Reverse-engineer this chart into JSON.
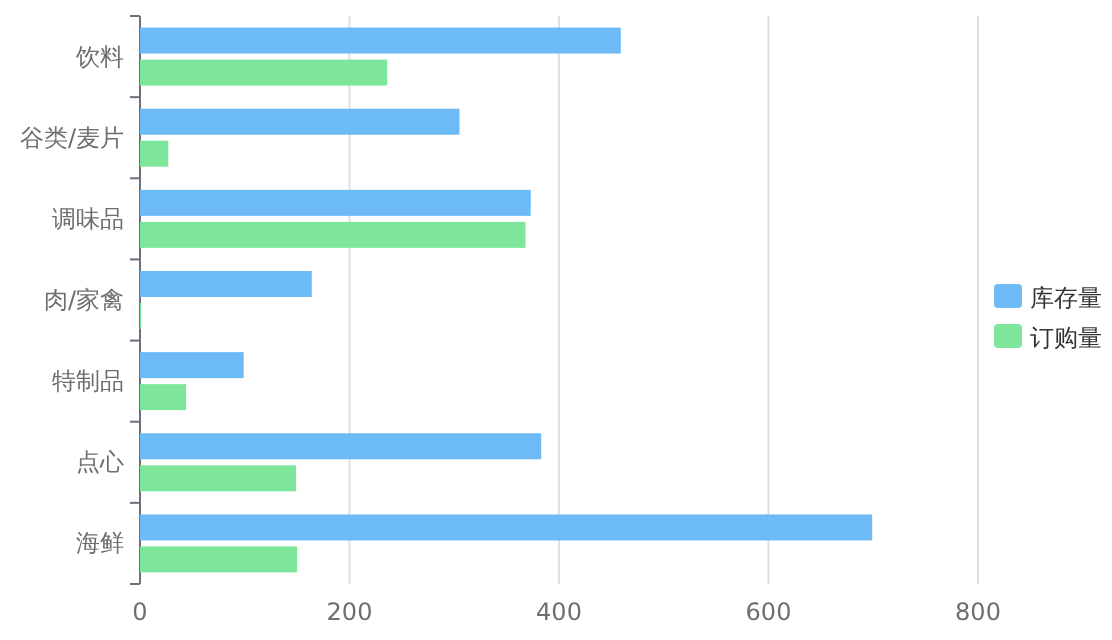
{
  "chart_data": {
    "type": "bar",
    "orientation": "horizontal",
    "categories": [
      "饮料",
      "谷类/麦片",
      "调味品",
      "肉/家禽",
      "特制品",
      "点心",
      "海鲜"
    ],
    "series": [
      {
        "name": "库存量",
        "color": "#6cbaf6",
        "values": [
          459,
          305,
          373,
          164,
          99,
          383,
          699
        ]
      },
      {
        "name": "订购量",
        "color": "#7ee69a",
        "values": [
          236,
          27,
          368,
          0,
          44,
          149,
          150
        ]
      }
    ],
    "xlim": [
      0,
      800
    ],
    "xticks": [
      0,
      200,
      400,
      600,
      800
    ],
    "grid": "x",
    "legend": "right"
  }
}
